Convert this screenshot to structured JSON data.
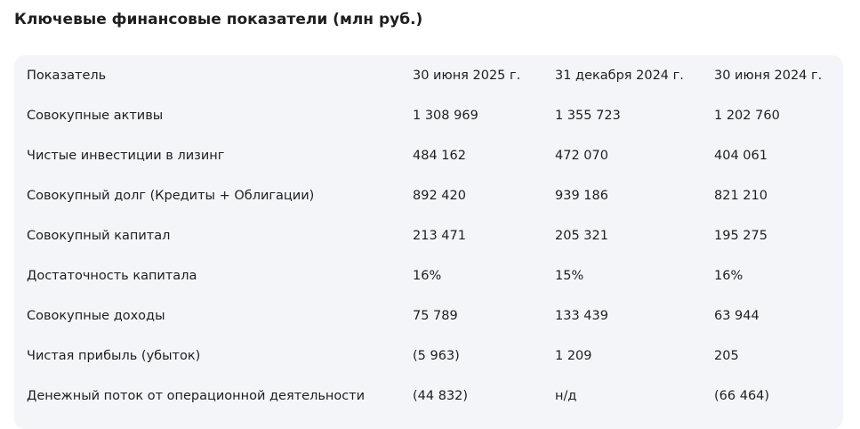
{
  "title": "Ключевые финансовые показатели (млн руб.)",
  "table": {
    "header": [
      "Показатель",
      "30 июня 2025 г.",
      "31 декабря 2024 г.",
      "30 июня 2024 г."
    ],
    "rows": [
      [
        "Совокупные активы",
        "1 308 969",
        "1 355 723",
        "1 202 760"
      ],
      [
        "Чистые инвестиции в лизинг",
        "484 162",
        "472 070",
        "404 061"
      ],
      [
        "Совокупный долг (Кредиты + Облигации)",
        "892 420",
        "939 186",
        "821 210"
      ],
      [
        "Совокупный капитал",
        "213 471",
        "205 321",
        "195 275"
      ],
      [
        "Достаточность капитала",
        "16%",
        "15%",
        "16%"
      ],
      [
        "Совокупные доходы",
        "75 789",
        "133 439",
        "63 944"
      ],
      [
        "Чистая прибыль (убыток)",
        "(5 963)",
        "1 209",
        "205"
      ],
      [
        "Денежный поток от операционной деятельности",
        "(44 832)",
        "н/д",
        "(66 464)"
      ]
    ]
  }
}
